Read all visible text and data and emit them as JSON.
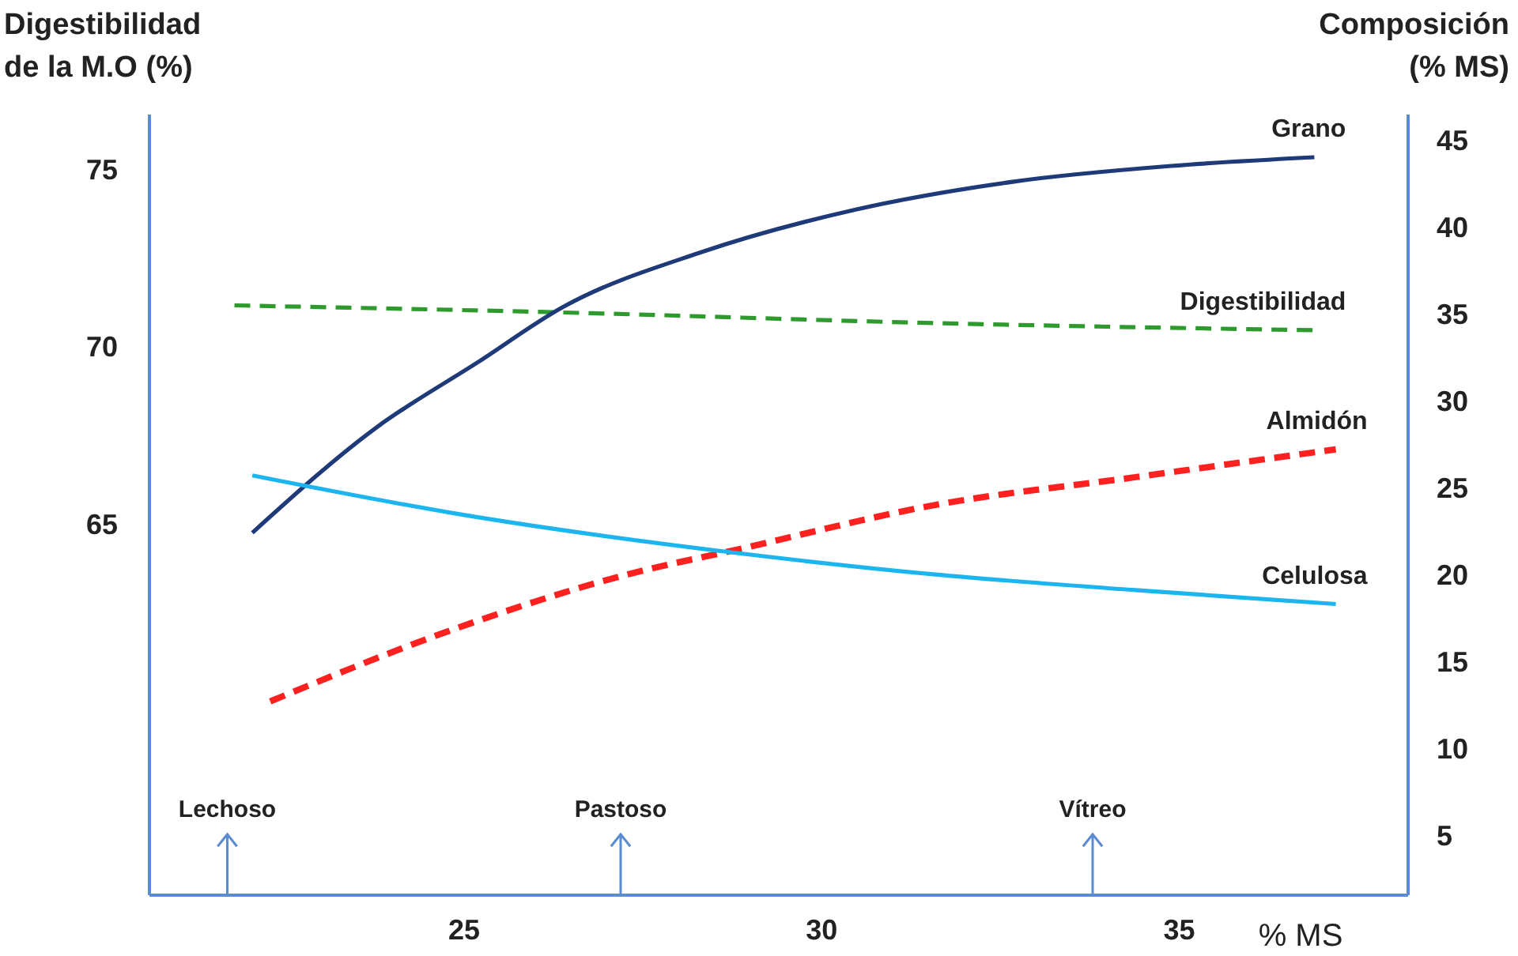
{
  "chart_data": {
    "type": "line",
    "xlabel": "% MS",
    "ylabel": "Digestibilidad\nde la M.O (%)",
    "y2label": "Composición\n(% MS)",
    "xlim": [
      20.6,
      38.2
    ],
    "xticks": [
      25,
      30,
      35
    ],
    "ylim": [
      54.6,
      76.6
    ],
    "yticks": [
      65,
      70,
      75
    ],
    "y2lim": [
      1.7,
      46.6
    ],
    "y2ticks": [
      5,
      10,
      15,
      20,
      25,
      30,
      35,
      40,
      45
    ],
    "grid": false,
    "marker": "none",
    "series": [
      {
        "name": "Digestibilidad",
        "color": "#2e9a2e",
        "line_style": "dashed",
        "x": [
          21.8,
          26.4,
          31.6,
          36.9
        ],
        "values": [
          71.2,
          71.0,
          70.7,
          70.5
        ]
      },
      {
        "name": "Grano",
        "color": "#1f3a78",
        "line_style": "solid",
        "axis": "y2",
        "x": [
          22.05,
          23.8,
          25.2,
          26.4,
          28.3,
          30.5,
          32.7,
          34.9,
          36.9
        ],
        "values": [
          22.5,
          28.6,
          32.3,
          35.5,
          38.6,
          41.1,
          42.7,
          43.6,
          44.1
        ]
      },
      {
        "name": "Almidón",
        "color": "#ff2020",
        "line_style": "dashed",
        "axis": "y2",
        "x": [
          22.3,
          24.9,
          27.2,
          28.9,
          31.6,
          34.4,
          37.2
        ],
        "values": [
          12.8,
          17.0,
          20.0,
          21.6,
          24.1,
          25.7,
          27.3
        ]
      },
      {
        "name": "Celulosa",
        "color": "#1cb5f0",
        "line_style": "solid",
        "axis": "y2",
        "x": [
          22.05,
          24.9,
          28.9,
          31.6,
          34.4,
          37.2
        ],
        "values": [
          25.8,
          23.6,
          21.3,
          20.1,
          19.2,
          18.4
        ]
      }
    ],
    "ref_lines": [
      {
        "axis": "x",
        "value": 21.7,
        "label": "Lechoso"
      },
      {
        "axis": "x",
        "value": 27.2,
        "label": "Pastoso"
      },
      {
        "axis": "x",
        "value": 33.8,
        "label": "Vítreo"
      }
    ]
  }
}
